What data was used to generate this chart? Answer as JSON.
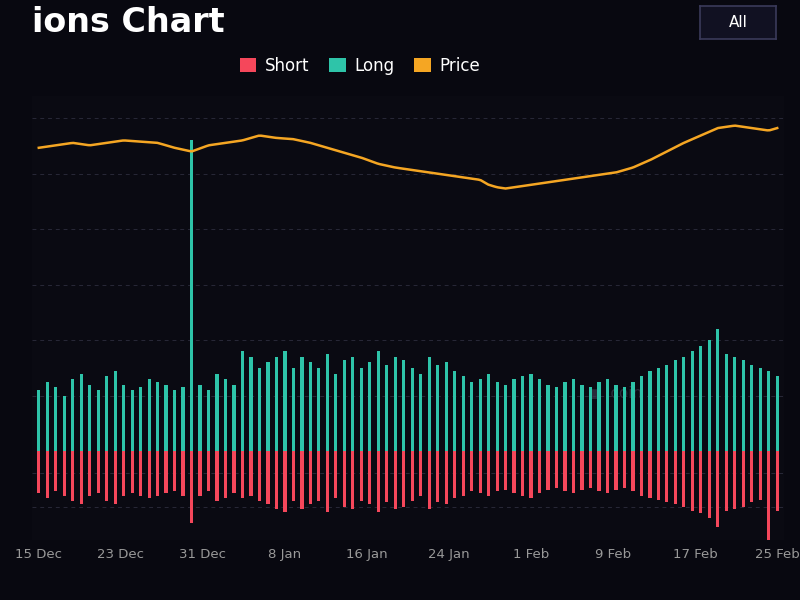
{
  "title": "ions Chart",
  "bg_color": "#080810",
  "plot_bg_color": "#0a0a12",
  "grid_color": "#282838",
  "title_color": "#ffffff",
  "title_fontsize": 24,
  "legend_labels": [
    "Short",
    "Long",
    "Price"
  ],
  "legend_colors": [
    "#f5475b",
    "#2ec4a9",
    "#f5a623"
  ],
  "short_color": "#f5475b",
  "long_color": "#2ec4a9",
  "price_color": "#f5a623",
  "x_labels": [
    "15 Dec",
    "23 Dec",
    "31 Dec",
    "8 Jan",
    "16 Jan",
    "24 Jan",
    "1 Feb",
    "9 Feb",
    "17 Feb",
    "25 Feb"
  ],
  "n_bars": 88,
  "long_bars": [
    0.55,
    0.62,
    0.58,
    0.5,
    0.65,
    0.7,
    0.6,
    0.55,
    0.68,
    0.72,
    0.6,
    0.55,
    0.58,
    0.65,
    0.62,
    0.6,
    0.55,
    0.58,
    2.8,
    0.6,
    0.55,
    0.7,
    0.65,
    0.6,
    0.9,
    0.85,
    0.75,
    0.8,
    0.85,
    0.9,
    0.75,
    0.85,
    0.8,
    0.75,
    0.88,
    0.7,
    0.82,
    0.85,
    0.75,
    0.8,
    0.9,
    0.78,
    0.85,
    0.82,
    0.75,
    0.7,
    0.85,
    0.78,
    0.8,
    0.72,
    0.68,
    0.62,
    0.65,
    0.7,
    0.62,
    0.6,
    0.65,
    0.68,
    0.7,
    0.65,
    0.6,
    0.58,
    0.62,
    0.65,
    0.6,
    0.58,
    0.62,
    0.65,
    0.6,
    0.58,
    0.62,
    0.68,
    0.72,
    0.75,
    0.78,
    0.82,
    0.85,
    0.9,
    0.95,
    1.0,
    1.1,
    0.88,
    0.85,
    0.82,
    0.78,
    0.75,
    0.72,
    0.68
  ],
  "short_bars": [
    0.38,
    0.42,
    0.36,
    0.4,
    0.45,
    0.48,
    0.4,
    0.38,
    0.45,
    0.48,
    0.4,
    0.38,
    0.4,
    0.42,
    0.4,
    0.38,
    0.36,
    0.4,
    0.65,
    0.4,
    0.36,
    0.45,
    0.42,
    0.38,
    0.42,
    0.4,
    0.45,
    0.48,
    0.52,
    0.55,
    0.45,
    0.52,
    0.48,
    0.45,
    0.55,
    0.42,
    0.5,
    0.52,
    0.45,
    0.48,
    0.55,
    0.46,
    0.52,
    0.5,
    0.45,
    0.4,
    0.52,
    0.46,
    0.48,
    0.42,
    0.4,
    0.36,
    0.38,
    0.4,
    0.36,
    0.35,
    0.38,
    0.4,
    0.42,
    0.38,
    0.35,
    0.33,
    0.36,
    0.38,
    0.35,
    0.33,
    0.36,
    0.38,
    0.35,
    0.33,
    0.36,
    0.4,
    0.42,
    0.44,
    0.46,
    0.48,
    0.5,
    0.54,
    0.56,
    0.6,
    0.68,
    0.54,
    0.52,
    0.5,
    0.46,
    0.44,
    1.1,
    0.54
  ],
  "price_data_x": [
    0,
    2,
    4,
    6,
    8,
    10,
    12,
    14,
    16,
    18,
    20,
    22,
    24,
    26,
    28,
    30,
    32,
    34,
    36,
    38,
    40,
    42,
    44,
    46,
    48,
    50,
    52,
    53,
    54,
    55,
    56,
    58,
    60,
    62,
    64,
    66,
    68,
    70,
    72,
    74,
    76,
    78,
    80,
    82,
    84,
    86,
    87
  ],
  "price_data_y": [
    0.68,
    0.7,
    0.72,
    0.7,
    0.72,
    0.74,
    0.73,
    0.72,
    0.68,
    0.65,
    0.7,
    0.72,
    0.74,
    0.78,
    0.76,
    0.75,
    0.72,
    0.68,
    0.64,
    0.6,
    0.55,
    0.52,
    0.5,
    0.48,
    0.46,
    0.44,
    0.42,
    0.38,
    0.36,
    0.35,
    0.36,
    0.38,
    0.4,
    0.42,
    0.44,
    0.46,
    0.48,
    0.52,
    0.58,
    0.65,
    0.72,
    0.78,
    0.84,
    0.86,
    0.84,
    0.82,
    0.84
  ],
  "bar_ylim": [
    -0.8,
    3.2
  ],
  "price_ylim": [
    -2.5,
    1.1
  ],
  "grid_yvals": [
    0.5,
    1.0,
    1.5,
    2.0,
    2.5,
    3.0
  ]
}
